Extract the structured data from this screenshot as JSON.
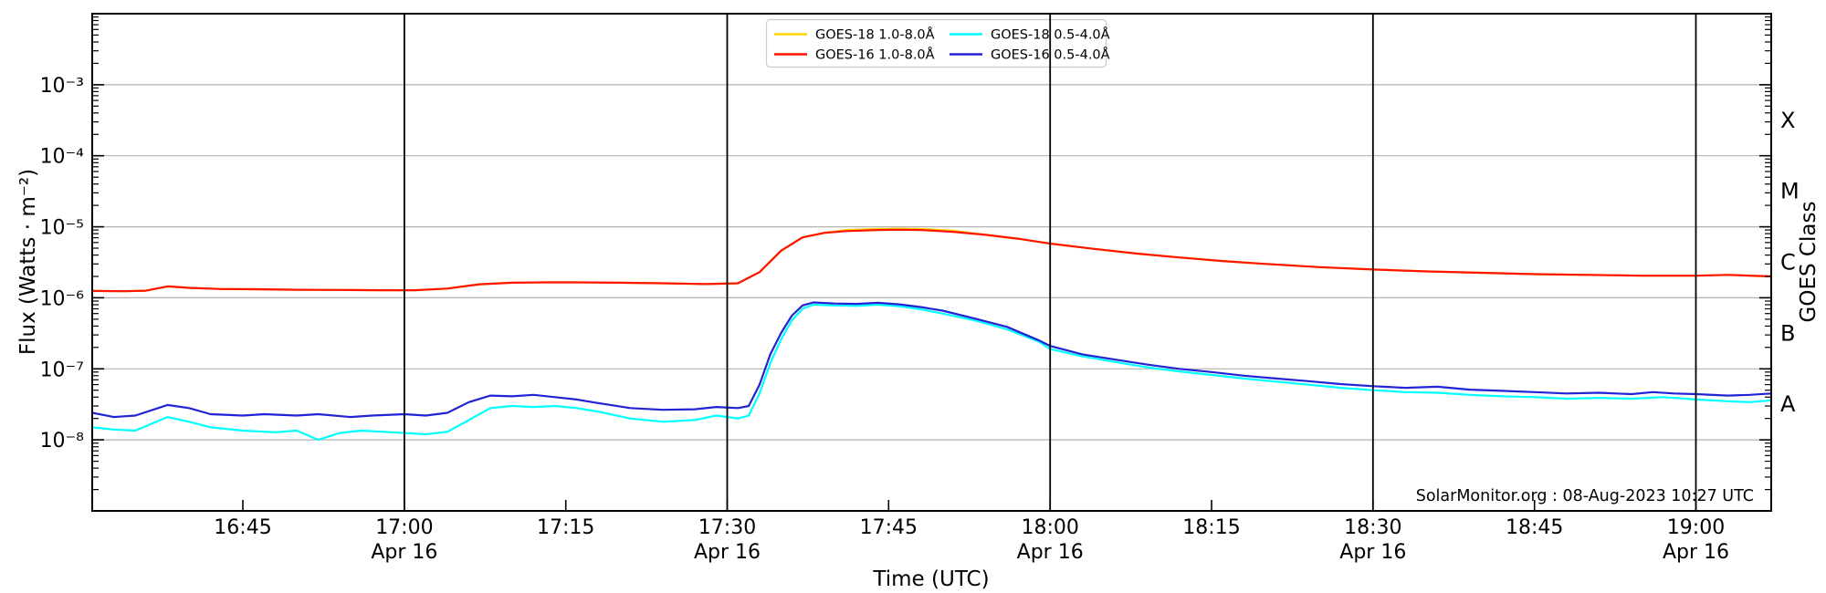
{
  "attribution": "SolarMonitor.org : 08-Aug-2023 10:27 UTC",
  "chart_data": {
    "type": "line",
    "title": "",
    "xlabel": "Time (UTC)",
    "ylabel": "Flux (Watts · m⁻²)",
    "ylabel_right": "GOES Class",
    "y_scale": "log",
    "y_top_exp": -2,
    "y_bottom_exp": -9,
    "x_start": "16:31",
    "x_end": "19:07",
    "x_date": "Apr 16",
    "grid_on": true,
    "grid_color": "#b3b3b3",
    "frame_color": "#000000",
    "vline_color": "#000000",
    "background_color": "#ffffff",
    "legend_position": "top-center",
    "y_ticks": [
      {
        "exp": -3,
        "label": "10⁻³"
      },
      {
        "exp": -4,
        "label": "10⁻⁴"
      },
      {
        "exp": -5,
        "label": "10⁻⁵"
      },
      {
        "exp": -6,
        "label": "10⁻⁶"
      },
      {
        "exp": -7,
        "label": "10⁻⁷"
      },
      {
        "exp": -8,
        "label": "10⁻⁸"
      }
    ],
    "x_ticks": [
      {
        "time": "16:45",
        "date_line": false
      },
      {
        "time": "17:00",
        "date_line": true
      },
      {
        "time": "17:15",
        "date_line": false
      },
      {
        "time": "17:30",
        "date_line": true
      },
      {
        "time": "17:45",
        "date_line": false
      },
      {
        "time": "18:00",
        "date_line": true
      },
      {
        "time": "18:15",
        "date_line": false
      },
      {
        "time": "18:30",
        "date_line": true
      },
      {
        "time": "18:45",
        "date_line": false
      },
      {
        "time": "19:00",
        "date_line": true
      }
    ],
    "class_labels": [
      {
        "label": "X",
        "center_exp": -3.5
      },
      {
        "label": "M",
        "center_exp": -4.5
      },
      {
        "label": "C",
        "center_exp": -5.5
      },
      {
        "label": "B",
        "center_exp": -6.5
      },
      {
        "label": "A",
        "center_exp": -7.5
      }
    ],
    "draw_order": [
      0,
      2,
      3,
      1
    ],
    "series": [
      {
        "name": "GOES-18 1.0-8.0Å",
        "color": "#ffd400",
        "points": [
          [
            "16:31",
            1.25e-06
          ],
          [
            "16:34",
            1.24e-06
          ],
          [
            "16:36",
            1.26e-06
          ],
          [
            "16:38",
            1.45e-06
          ],
          [
            "16:40",
            1.38e-06
          ],
          [
            "16:43",
            1.33e-06
          ],
          [
            "16:46",
            1.32e-06
          ],
          [
            "16:50",
            1.3e-06
          ],
          [
            "16:54",
            1.29e-06
          ],
          [
            "16:58",
            1.28e-06
          ],
          [
            "17:01",
            1.28e-06
          ],
          [
            "17:04",
            1.35e-06
          ],
          [
            "17:07",
            1.55e-06
          ],
          [
            "17:10",
            1.63e-06
          ],
          [
            "17:13",
            1.65e-06
          ],
          [
            "17:16",
            1.65e-06
          ],
          [
            "17:20",
            1.63e-06
          ],
          [
            "17:24",
            1.6e-06
          ],
          [
            "17:28",
            1.56e-06
          ],
          [
            "17:31",
            1.6e-06
          ],
          [
            "17:33",
            2.3e-06
          ],
          [
            "17:35",
            4.6e-06
          ],
          [
            "17:37",
            7.1e-06
          ],
          [
            "17:39",
            8.2e-06
          ],
          [
            "17:41",
            9e-06
          ],
          [
            "17:44",
            9.3e-06
          ],
          [
            "17:46",
            9.4e-06
          ],
          [
            "17:48",
            9.3e-06
          ],
          [
            "17:51",
            8.8e-06
          ],
          [
            "17:54",
            7.7e-06
          ],
          [
            "17:57",
            6.8e-06
          ],
          [
            "18:00",
            5.8e-06
          ],
          [
            "18:04",
            4.9e-06
          ],
          [
            "18:08",
            4.2e-06
          ],
          [
            "18:12",
            3.7e-06
          ],
          [
            "18:16",
            3.3e-06
          ],
          [
            "18:20",
            3e-06
          ],
          [
            "18:25",
            2.7e-06
          ],
          [
            "18:30",
            2.5e-06
          ],
          [
            "18:35",
            2.35e-06
          ],
          [
            "18:40",
            2.25e-06
          ],
          [
            "18:45",
            2.15e-06
          ],
          [
            "18:50",
            2.1e-06
          ],
          [
            "18:55",
            2.05e-06
          ],
          [
            "19:00",
            2.05e-06
          ],
          [
            "19:03",
            2.1e-06
          ],
          [
            "19:07",
            2e-06
          ]
        ]
      },
      {
        "name": "GOES-16 1.0-8.0Å",
        "color": "#ff1400",
        "points": [
          [
            "16:31",
            1.25e-06
          ],
          [
            "16:34",
            1.24e-06
          ],
          [
            "16:36",
            1.26e-06
          ],
          [
            "16:38",
            1.45e-06
          ],
          [
            "16:40",
            1.38e-06
          ],
          [
            "16:43",
            1.33e-06
          ],
          [
            "16:46",
            1.32e-06
          ],
          [
            "16:50",
            1.3e-06
          ],
          [
            "16:54",
            1.29e-06
          ],
          [
            "16:58",
            1.28e-06
          ],
          [
            "17:01",
            1.28e-06
          ],
          [
            "17:04",
            1.35e-06
          ],
          [
            "17:07",
            1.55e-06
          ],
          [
            "17:10",
            1.63e-06
          ],
          [
            "17:13",
            1.65e-06
          ],
          [
            "17:16",
            1.65e-06
          ],
          [
            "17:20",
            1.63e-06
          ],
          [
            "17:24",
            1.6e-06
          ],
          [
            "17:28",
            1.56e-06
          ],
          [
            "17:31",
            1.6e-06
          ],
          [
            "17:33",
            2.3e-06
          ],
          [
            "17:35",
            4.6e-06
          ],
          [
            "17:37",
            7.1e-06
          ],
          [
            "17:39",
            8.2e-06
          ],
          [
            "17:41",
            8.7e-06
          ],
          [
            "17:44",
            9e-06
          ],
          [
            "17:46",
            9.1e-06
          ],
          [
            "17:48",
            9e-06
          ],
          [
            "17:51",
            8.5e-06
          ],
          [
            "17:54",
            7.7e-06
          ],
          [
            "17:57",
            6.8e-06
          ],
          [
            "18:00",
            5.8e-06
          ],
          [
            "18:04",
            4.9e-06
          ],
          [
            "18:08",
            4.2e-06
          ],
          [
            "18:12",
            3.7e-06
          ],
          [
            "18:16",
            3.3e-06
          ],
          [
            "18:20",
            3e-06
          ],
          [
            "18:25",
            2.7e-06
          ],
          [
            "18:30",
            2.5e-06
          ],
          [
            "18:35",
            2.35e-06
          ],
          [
            "18:40",
            2.25e-06
          ],
          [
            "18:45",
            2.15e-06
          ],
          [
            "18:50",
            2.1e-06
          ],
          [
            "18:55",
            2.05e-06
          ],
          [
            "19:00",
            2.05e-06
          ],
          [
            "19:03",
            2.1e-06
          ],
          [
            "19:07",
            2e-06
          ]
        ]
      },
      {
        "name": "GOES-18 0.5-4.0Å",
        "color": "#00ffff",
        "points": [
          [
            "16:31",
            1.5e-08
          ],
          [
            "16:33",
            1.4e-08
          ],
          [
            "16:35",
            1.35e-08
          ],
          [
            "16:38",
            2.1e-08
          ],
          [
            "16:40",
            1.8e-08
          ],
          [
            "16:42",
            1.5e-08
          ],
          [
            "16:45",
            1.35e-08
          ],
          [
            "16:48",
            1.28e-08
          ],
          [
            "16:50",
            1.35e-08
          ],
          [
            "16:52",
            1e-08
          ],
          [
            "16:54",
            1.25e-08
          ],
          [
            "16:56",
            1.35e-08
          ],
          [
            "16:58",
            1.3e-08
          ],
          [
            "17:00",
            1.25e-08
          ],
          [
            "17:02",
            1.2e-08
          ],
          [
            "17:04",
            1.3e-08
          ],
          [
            "17:06",
            1.9e-08
          ],
          [
            "17:08",
            2.8e-08
          ],
          [
            "17:10",
            3e-08
          ],
          [
            "17:12",
            2.9e-08
          ],
          [
            "17:14",
            3e-08
          ],
          [
            "17:16",
            2.8e-08
          ],
          [
            "17:18",
            2.5e-08
          ],
          [
            "17:21",
            2e-08
          ],
          [
            "17:24",
            1.8e-08
          ],
          [
            "17:27",
            1.9e-08
          ],
          [
            "17:29",
            2.2e-08
          ],
          [
            "17:31",
            2e-08
          ],
          [
            "17:32",
            2.2e-08
          ],
          [
            "17:33",
            4.5e-08
          ],
          [
            "17:34",
            1.2e-07
          ],
          [
            "17:35",
            2.6e-07
          ],
          [
            "17:36",
            4.8e-07
          ],
          [
            "17:37",
            7e-07
          ],
          [
            "17:38",
            8e-07
          ],
          [
            "17:40",
            7.8e-07
          ],
          [
            "17:42",
            7.7e-07
          ],
          [
            "17:44",
            8e-07
          ],
          [
            "17:46",
            7.6e-07
          ],
          [
            "17:48",
            6.9e-07
          ],
          [
            "17:50",
            6e-07
          ],
          [
            "17:53",
            4.8e-07
          ],
          [
            "17:56",
            3.6e-07
          ],
          [
            "17:59",
            2.4e-07
          ],
          [
            "18:00",
            1.9e-07
          ],
          [
            "18:03",
            1.5e-07
          ],
          [
            "18:06",
            1.25e-07
          ],
          [
            "18:09",
            1.05e-07
          ],
          [
            "18:12",
            9.2e-08
          ],
          [
            "18:15",
            8.2e-08
          ],
          [
            "18:18",
            7.3e-08
          ],
          [
            "18:21",
            6.6e-08
          ],
          [
            "18:24",
            6e-08
          ],
          [
            "18:27",
            5.4e-08
          ],
          [
            "18:30",
            5e-08
          ],
          [
            "18:33",
            4.7e-08
          ],
          [
            "18:36",
            4.6e-08
          ],
          [
            "18:39",
            4.3e-08
          ],
          [
            "18:42",
            4.1e-08
          ],
          [
            "18:45",
            4e-08
          ],
          [
            "18:48",
            3.8e-08
          ],
          [
            "18:51",
            3.9e-08
          ],
          [
            "18:54",
            3.8e-08
          ],
          [
            "18:57",
            4e-08
          ],
          [
            "19:00",
            3.7e-08
          ],
          [
            "19:03",
            3.5e-08
          ],
          [
            "19:05",
            3.4e-08
          ],
          [
            "19:07",
            3.6e-08
          ]
        ]
      },
      {
        "name": "GOES-16 0.5-4.0Å",
        "color": "#2222d6",
        "points": [
          [
            "16:31",
            2.4e-08
          ],
          [
            "16:33",
            2.1e-08
          ],
          [
            "16:35",
            2.2e-08
          ],
          [
            "16:38",
            3.1e-08
          ],
          [
            "16:40",
            2.8e-08
          ],
          [
            "16:42",
            2.3e-08
          ],
          [
            "16:45",
            2.2e-08
          ],
          [
            "16:47",
            2.3e-08
          ],
          [
            "16:50",
            2.2e-08
          ],
          [
            "16:52",
            2.3e-08
          ],
          [
            "16:55",
            2.1e-08
          ],
          [
            "16:57",
            2.2e-08
          ],
          [
            "17:00",
            2.3e-08
          ],
          [
            "17:02",
            2.2e-08
          ],
          [
            "17:04",
            2.4e-08
          ],
          [
            "17:06",
            3.4e-08
          ],
          [
            "17:08",
            4.2e-08
          ],
          [
            "17:10",
            4.1e-08
          ],
          [
            "17:12",
            4.3e-08
          ],
          [
            "17:14",
            4e-08
          ],
          [
            "17:16",
            3.7e-08
          ],
          [
            "17:18",
            3.3e-08
          ],
          [
            "17:21",
            2.8e-08
          ],
          [
            "17:24",
            2.65e-08
          ],
          [
            "17:27",
            2.7e-08
          ],
          [
            "17:29",
            2.9e-08
          ],
          [
            "17:31",
            2.8e-08
          ],
          [
            "17:32",
            3e-08
          ],
          [
            "17:33",
            6e-08
          ],
          [
            "17:34",
            1.6e-07
          ],
          [
            "17:35",
            3.2e-07
          ],
          [
            "17:36",
            5.6e-07
          ],
          [
            "17:37",
            7.8e-07
          ],
          [
            "17:38",
            8.6e-07
          ],
          [
            "17:40",
            8.3e-07
          ],
          [
            "17:42",
            8.2e-07
          ],
          [
            "17:44",
            8.5e-07
          ],
          [
            "17:46",
            8.1e-07
          ],
          [
            "17:48",
            7.4e-07
          ],
          [
            "17:50",
            6.6e-07
          ],
          [
            "17:53",
            5.1e-07
          ],
          [
            "17:56",
            3.9e-07
          ],
          [
            "17:59",
            2.5e-07
          ],
          [
            "18:00",
            2.1e-07
          ],
          [
            "18:03",
            1.6e-07
          ],
          [
            "18:06",
            1.35e-07
          ],
          [
            "18:09",
            1.15e-07
          ],
          [
            "18:12",
            1e-07
          ],
          [
            "18:15",
            9e-08
          ],
          [
            "18:18",
            8e-08
          ],
          [
            "18:21",
            7.3e-08
          ],
          [
            "18:24",
            6.7e-08
          ],
          [
            "18:27",
            6.1e-08
          ],
          [
            "18:30",
            5.7e-08
          ],
          [
            "18:33",
            5.4e-08
          ],
          [
            "18:36",
            5.6e-08
          ],
          [
            "18:39",
            5.1e-08
          ],
          [
            "18:42",
            4.9e-08
          ],
          [
            "18:45",
            4.7e-08
          ],
          [
            "18:48",
            4.5e-08
          ],
          [
            "18:51",
            4.6e-08
          ],
          [
            "18:54",
            4.4e-08
          ],
          [
            "18:56",
            4.7e-08
          ],
          [
            "18:58",
            4.5e-08
          ],
          [
            "19:00",
            4.4e-08
          ],
          [
            "19:03",
            4.2e-08
          ],
          [
            "19:05",
            4.3e-08
          ],
          [
            "19:07",
            4.5e-08
          ]
        ]
      }
    ]
  }
}
